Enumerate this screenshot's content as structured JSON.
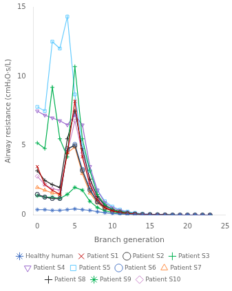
{
  "chart_data": {
    "type": "line",
    "xlabel": "Branch generation",
    "ylabel": "Airway resistance (cmH₂O·s/L)",
    "xlim": [
      -0.5,
      25
    ],
    "ylim": [
      0,
      15
    ],
    "xticks": [
      0,
      5,
      10,
      15,
      20,
      25
    ],
    "yticks": [
      0,
      5,
      10,
      15
    ],
    "grid": false,
    "legend": "bottom",
    "x": [
      0,
      1,
      2,
      3,
      4,
      5,
      6,
      7,
      8,
      9,
      10,
      11,
      12,
      13,
      14,
      15,
      16,
      17,
      18,
      19,
      20,
      21,
      22,
      23
    ],
    "series": [
      {
        "name": "Healthy human",
        "color": "#4472c4",
        "marker": "star",
        "line_style": "solid",
        "values": [
          0.4,
          0.4,
          0.35,
          0.35,
          0.4,
          0.45,
          0.4,
          0.35,
          0.25,
          0.18,
          0.12,
          0.08,
          0.06,
          0.04,
          0.03,
          0.02,
          0.02,
          0.01,
          0.01,
          0.01,
          0.01,
          0.01,
          0.01,
          0.01
        ]
      },
      {
        "name": "Patient S1",
        "color": "#c00000",
        "marker": "x",
        "line_style": "solid",
        "values": [
          3.5,
          2.2,
          1.8,
          1.5,
          4.5,
          8.2,
          4.2,
          2.2,
          1.1,
          0.55,
          0.32,
          0.2,
          0.14,
          0.09,
          0.06,
          0.04,
          0.03,
          0.02,
          0.01,
          0.01,
          0.01,
          0.01,
          0.01,
          0.01
        ]
      },
      {
        "name": "Patient S2",
        "color": "#404040",
        "marker": "circle",
        "line_style": "solid",
        "values": [
          1.5,
          1.3,
          1.2,
          1.2,
          4.8,
          5.0,
          3.2,
          1.8,
          0.95,
          0.52,
          0.3,
          0.19,
          0.12,
          0.08,
          0.05,
          0.04,
          0.03,
          0.02,
          0.01,
          0.01,
          0.01,
          0.01,
          0.01,
          0.01
        ]
      },
      {
        "name": "Patient S3",
        "color": "#00b050",
        "marker": "plus",
        "line_style": "solid",
        "values": [
          5.2,
          4.8,
          9.2,
          5.5,
          4.2,
          10.7,
          5.5,
          3.2,
          1.5,
          0.75,
          0.42,
          0.28,
          0.18,
          0.11,
          0.07,
          0.05,
          0.04,
          0.03,
          0.02,
          0.01,
          0.01,
          0.01,
          0.01,
          0.01
        ]
      },
      {
        "name": "Patient S4",
        "color": "#9966cc",
        "marker": "triangle_down",
        "line_style": "solid",
        "values": [
          7.5,
          7.2,
          7.0,
          6.8,
          6.5,
          7.2,
          6.5,
          3.5,
          1.8,
          0.9,
          0.52,
          0.35,
          0.22,
          0.14,
          0.09,
          0.06,
          0.04,
          0.03,
          0.02,
          0.01,
          0.01,
          0.01,
          0.01,
          0.01
        ]
      },
      {
        "name": "Patient S5",
        "color": "#66ccff",
        "marker": "square",
        "line_style": "solid",
        "values": [
          7.8,
          7.5,
          12.5,
          12.0,
          14.3,
          8.7,
          5.0,
          3.2,
          1.8,
          1.0,
          0.62,
          0.4,
          0.26,
          0.17,
          0.11,
          0.07,
          0.05,
          0.03,
          0.02,
          0.01,
          0.01,
          0.01,
          0.01,
          0.01
        ]
      },
      {
        "name": "Patient S6",
        "color": "#4472c4",
        "marker": "circle",
        "line_style": "solid",
        "values": [
          1.5,
          1.3,
          1.2,
          1.2,
          4.7,
          5.1,
          3.3,
          1.9,
          1.0,
          0.55,
          0.32,
          0.2,
          0.13,
          0.08,
          0.05,
          0.04,
          0.03,
          0.02,
          0.01,
          0.01,
          0.01,
          0.01,
          0.01,
          0.01
        ]
      },
      {
        "name": "Patient S7",
        "color": "#ff8c42",
        "marker": "triangle_up",
        "line_style": "solid",
        "values": [
          2.0,
          1.8,
          1.6,
          1.5,
          4.5,
          4.9,
          3.0,
          1.6,
          0.88,
          0.48,
          0.28,
          0.18,
          0.11,
          0.07,
          0.05,
          0.03,
          0.02,
          0.02,
          0.01,
          0.01,
          0.01,
          0.01,
          0.01,
          0.01
        ]
      },
      {
        "name": "Patient S8",
        "color": "#222222",
        "marker": "plus",
        "line_style": "solid",
        "values": [
          3.2,
          2.5,
          2.2,
          2.0,
          5.5,
          7.5,
          4.8,
          2.6,
          1.35,
          0.7,
          0.41,
          0.26,
          0.17,
          0.1,
          0.07,
          0.04,
          0.03,
          0.02,
          0.01,
          0.01,
          0.01,
          0.01,
          0.01,
          0.01
        ]
      },
      {
        "name": "Patient S9",
        "color": "#00b050",
        "marker": "star",
        "line_style": "solid",
        "values": [
          1.4,
          1.3,
          1.3,
          1.2,
          1.5,
          2.0,
          1.8,
          1.0,
          0.55,
          0.32,
          0.2,
          0.13,
          0.08,
          0.05,
          0.04,
          0.03,
          0.02,
          0.01,
          0.01,
          0.01,
          0.01,
          0.01,
          0.01,
          0.01
        ]
      },
      {
        "name": "Patient S10",
        "color": "#cc88cc",
        "marker": "diamond",
        "line_style": "solid",
        "values": [
          2.8,
          2.2,
          1.9,
          1.8,
          4.5,
          6.8,
          4.5,
          2.4,
          1.25,
          0.65,
          0.38,
          0.24,
          0.15,
          0.1,
          0.06,
          0.04,
          0.03,
          0.02,
          0.01,
          0.01,
          0.01,
          0.01,
          0.01,
          0.01
        ]
      }
    ]
  }
}
